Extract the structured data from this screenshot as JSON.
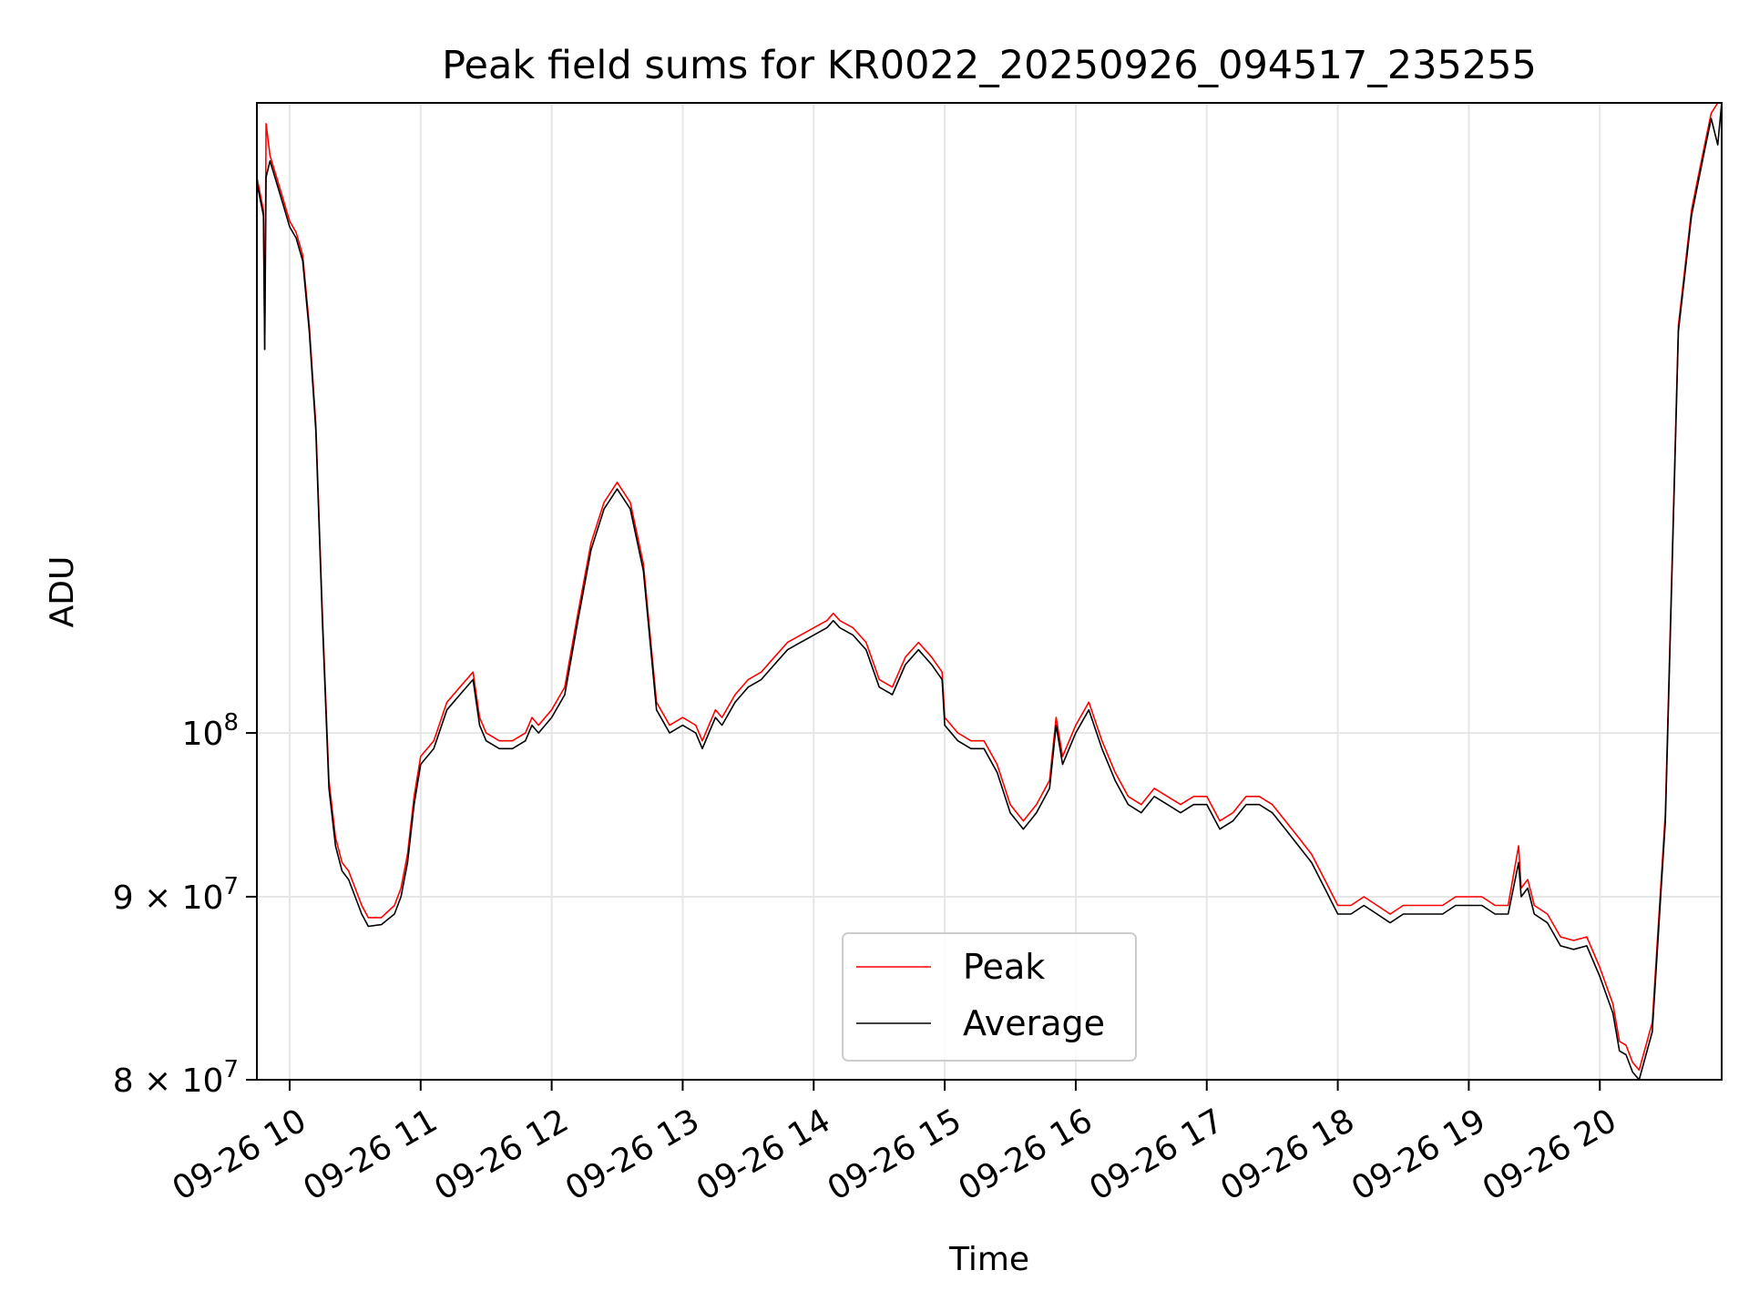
{
  "chart_data": {
    "type": "line",
    "title": "Peak field sums for KR0022_20250926_094517_235255",
    "xlabel": "Time",
    "ylabel": "ADU",
    "yscale": "log",
    "xlim": [
      9.75,
      20.93
    ],
    "ylim": [
      80000000,
      150000000
    ],
    "grid": true,
    "legend_position": "bottom-center",
    "x_ticks": [
      {
        "value": 10,
        "label": "09-26 10"
      },
      {
        "value": 11,
        "label": "09-26 11"
      },
      {
        "value": 12,
        "label": "09-26 12"
      },
      {
        "value": 13,
        "label": "09-26 13"
      },
      {
        "value": 14,
        "label": "09-26 14"
      },
      {
        "value": 15,
        "label": "09-26 15"
      },
      {
        "value": 16,
        "label": "09-26 16"
      },
      {
        "value": 17,
        "label": "09-26 17"
      },
      {
        "value": 18,
        "label": "09-26 18"
      },
      {
        "value": 19,
        "label": "09-26 19"
      },
      {
        "value": 20,
        "label": "09-26 20"
      }
    ],
    "y_ticks": [
      {
        "value": 80000000,
        "base": "8 × 10",
        "exp": "7"
      },
      {
        "value": 90000000,
        "base": "9 × 10",
        "exp": "7"
      },
      {
        "value": 100000000,
        "base": "10",
        "exp": "8"
      }
    ],
    "series": [
      {
        "name": "Peak",
        "color": "#ff0000",
        "x": [
          9.75,
          9.8,
          9.81,
          9.82,
          9.85,
          9.9,
          9.95,
          10.0,
          10.05,
          10.1,
          10.15,
          10.2,
          10.25,
          10.3,
          10.35,
          10.4,
          10.45,
          10.5,
          10.55,
          10.6,
          10.7,
          10.8,
          10.85,
          10.9,
          10.95,
          11.0,
          11.1,
          11.2,
          11.3,
          11.4,
          11.45,
          11.5,
          11.6,
          11.7,
          11.8,
          11.85,
          11.9,
          12.0,
          12.1,
          12.2,
          12.3,
          12.4,
          12.5,
          12.6,
          12.7,
          12.8,
          12.9,
          13.0,
          13.1,
          13.15,
          13.2,
          13.25,
          13.3,
          13.4,
          13.5,
          13.6,
          13.7,
          13.8,
          13.9,
          14.0,
          14.1,
          14.15,
          14.2,
          14.3,
          14.4,
          14.5,
          14.6,
          14.7,
          14.8,
          14.9,
          14.98,
          15.0,
          15.1,
          15.2,
          15.3,
          15.4,
          15.5,
          15.6,
          15.7,
          15.8,
          15.85,
          15.9,
          16.0,
          16.1,
          16.2,
          16.3,
          16.4,
          16.5,
          16.6,
          16.7,
          16.8,
          16.9,
          17.0,
          17.1,
          17.2,
          17.3,
          17.4,
          17.5,
          17.6,
          17.7,
          17.8,
          17.9,
          18.0,
          18.1,
          18.2,
          18.3,
          18.4,
          18.5,
          18.6,
          18.7,
          18.8,
          18.9,
          19.0,
          19.1,
          19.2,
          19.3,
          19.38,
          19.4,
          19.45,
          19.5,
          19.6,
          19.7,
          19.8,
          19.9,
          20.0,
          20.1,
          20.15,
          20.2,
          20.25,
          20.3,
          20.4,
          20.5,
          20.6,
          20.7,
          20.75,
          20.8,
          20.85,
          20.9,
          20.93
        ],
        "values": [
          143000000,
          140000000,
          128000000,
          148000000,
          145000000,
          143000000,
          141000000,
          139000000,
          138000000,
          136000000,
          130000000,
          122000000,
          108000000,
          97000000,
          93500000,
          92000000,
          91500000,
          90500000,
          89500000,
          88800000,
          88800000,
          89500000,
          90500000,
          92500000,
          96000000,
          98500000,
          99500000,
          102000000,
          103000000,
          104000000,
          101000000,
          100000000,
          99500000,
          99500000,
          100000000,
          101000000,
          100500000,
          101500000,
          103000000,
          108000000,
          113000000,
          116000000,
          117500000,
          116000000,
          111500000,
          102000000,
          100500000,
          101000000,
          100500000,
          99500000,
          100500000,
          101500000,
          101000000,
          102500000,
          103500000,
          104000000,
          105000000,
          106000000,
          106500000,
          107000000,
          107500000,
          108000000,
          107500000,
          107000000,
          106000000,
          103500000,
          103000000,
          105000000,
          106000000,
          105000000,
          104000000,
          101000000,
          100000000,
          99500000,
          99500000,
          98000000,
          95500000,
          94500000,
          95500000,
          97000000,
          101000000,
          98500000,
          100500000,
          102000000,
          99500000,
          97500000,
          96000000,
          95500000,
          96500000,
          96000000,
          95500000,
          96000000,
          96000000,
          94500000,
          95000000,
          96000000,
          96000000,
          95500000,
          94500000,
          93500000,
          92500000,
          91000000,
          89500000,
          89500000,
          90000000,
          89500000,
          89000000,
          89500000,
          89500000,
          89500000,
          89500000,
          90000000,
          90000000,
          90000000,
          89500000,
          89500000,
          93000000,
          90500000,
          91000000,
          89500000,
          89000000,
          87700000,
          87500000,
          87700000,
          86000000,
          84000000,
          82000000,
          81800000,
          80900000,
          80500000,
          83000000,
          95000000,
          130000000,
          140000000,
          143000000,
          146000000,
          149000000,
          150000000,
          150000000
        ]
      },
      {
        "name": "Average",
        "color": "#000000",
        "x": [
          9.75,
          9.8,
          9.81,
          9.82,
          9.85,
          9.9,
          9.95,
          10.0,
          10.05,
          10.1,
          10.15,
          10.2,
          10.25,
          10.3,
          10.35,
          10.4,
          10.45,
          10.5,
          10.55,
          10.6,
          10.7,
          10.8,
          10.85,
          10.9,
          10.95,
          11.0,
          11.1,
          11.2,
          11.3,
          11.4,
          11.45,
          11.5,
          11.6,
          11.7,
          11.8,
          11.85,
          11.9,
          12.0,
          12.1,
          12.2,
          12.3,
          12.4,
          12.5,
          12.6,
          12.7,
          12.8,
          12.9,
          13.0,
          13.1,
          13.15,
          13.2,
          13.25,
          13.3,
          13.4,
          13.5,
          13.6,
          13.7,
          13.8,
          13.9,
          14.0,
          14.1,
          14.15,
          14.2,
          14.3,
          14.4,
          14.5,
          14.6,
          14.7,
          14.8,
          14.9,
          14.98,
          15.0,
          15.1,
          15.2,
          15.3,
          15.4,
          15.5,
          15.6,
          15.7,
          15.8,
          15.85,
          15.9,
          16.0,
          16.1,
          16.2,
          16.3,
          16.4,
          16.5,
          16.6,
          16.7,
          16.8,
          16.9,
          17.0,
          17.1,
          17.2,
          17.3,
          17.4,
          17.5,
          17.6,
          17.7,
          17.8,
          17.9,
          18.0,
          18.1,
          18.2,
          18.3,
          18.4,
          18.5,
          18.6,
          18.7,
          18.8,
          18.9,
          19.0,
          19.1,
          19.2,
          19.3,
          19.38,
          19.4,
          19.45,
          19.5,
          19.6,
          19.7,
          19.8,
          19.9,
          20.0,
          20.1,
          20.15,
          20.2,
          20.25,
          20.3,
          20.4,
          20.5,
          20.6,
          20.7,
          20.75,
          20.8,
          20.85,
          20.9,
          20.93
        ],
        "values": [
          142500000,
          139500000,
          128000000,
          143000000,
          144500000,
          142500000,
          140500000,
          138500000,
          137500000,
          135500000,
          129500000,
          121500000,
          107500000,
          96500000,
          93000000,
          91500000,
          91000000,
          90000000,
          89000000,
          88300000,
          88400000,
          89000000,
          90000000,
          92000000,
          95500000,
          98000000,
          99000000,
          101500000,
          102500000,
          103500000,
          100500000,
          99500000,
          99000000,
          99000000,
          99500000,
          100500000,
          100000000,
          101000000,
          102500000,
          107500000,
          112500000,
          115500000,
          117000000,
          115500000,
          111000000,
          101500000,
          100000000,
          100500000,
          100000000,
          99000000,
          100000000,
          101000000,
          100500000,
          102000000,
          103000000,
          103500000,
          104500000,
          105500000,
          106000000,
          106500000,
          107000000,
          107500000,
          107000000,
          106500000,
          105500000,
          103000000,
          102500000,
          104500000,
          105500000,
          104500000,
          103500000,
          100500000,
          99500000,
          99000000,
          99000000,
          97500000,
          95000000,
          94000000,
          95000000,
          96500000,
          100500000,
          98000000,
          100000000,
          101500000,
          99000000,
          97000000,
          95500000,
          95000000,
          96000000,
          95500000,
          95000000,
          95500000,
          95500000,
          94000000,
          94500000,
          95500000,
          95500000,
          95000000,
          94000000,
          93000000,
          92000000,
          90500000,
          89000000,
          89000000,
          89500000,
          89000000,
          88500000,
          89000000,
          89000000,
          89000000,
          89000000,
          89500000,
          89500000,
          89500000,
          89000000,
          89000000,
          92000000,
          90000000,
          90500000,
          89000000,
          88500000,
          87200000,
          87000000,
          87200000,
          85500000,
          83500000,
          81500000,
          81300000,
          80400000,
          80000000,
          82500000,
          94500000,
          129500000,
          139500000,
          142500000,
          145500000,
          148500000,
          146000000,
          150000000
        ]
      }
    ]
  }
}
